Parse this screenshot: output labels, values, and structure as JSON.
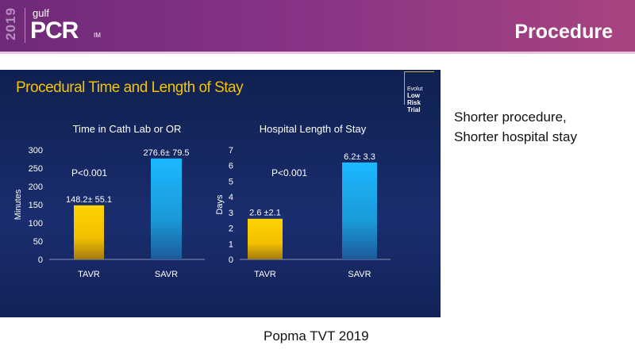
{
  "header": {
    "year": "2019",
    "brand_top": "gulf",
    "brand": "PCR",
    "brand_suffix": "IM",
    "title": "Procedure"
  },
  "slide": {
    "title": "Procedural Time and Length of Stay",
    "badge_line1": "Evolut",
    "badge_line2": "Low Risk",
    "badge_line3": "Trial"
  },
  "side_text": [
    "Shorter procedure,",
    "Shorter hospital stay"
  ],
  "citation": "Popma TVT 2019",
  "colors": {
    "tavr": "#ffd200",
    "savr": "#1ab0f0",
    "title": "#f5c400"
  },
  "chart_data": [
    {
      "type": "bar",
      "title": "Time in Cath Lab or OR",
      "ylabel": "Minutes",
      "categories": [
        "TAVR",
        "SAVR"
      ],
      "values": [
        148.2,
        276.6
      ],
      "data_labels": [
        "148.2± 55.1",
        "276.6± 79.5"
      ],
      "annotation": "P<0.001",
      "ylim": [
        0,
        300
      ],
      "yticks": [
        "0",
        "50",
        "100",
        "150",
        "200",
        "250",
        "300"
      ]
    },
    {
      "type": "bar",
      "title": "Hospital Length of Stay",
      "ylabel": "Days",
      "categories": [
        "TAVR",
        "SAVR"
      ],
      "values": [
        2.6,
        6.2
      ],
      "data_labels": [
        "2.6 ±2.1",
        "6.2± 3.3"
      ],
      "annotation": "P<0.001",
      "ylim": [
        0,
        7
      ],
      "yticks": [
        "0",
        "1",
        "2",
        "3",
        "4",
        "5",
        "6",
        "7"
      ]
    }
  ]
}
